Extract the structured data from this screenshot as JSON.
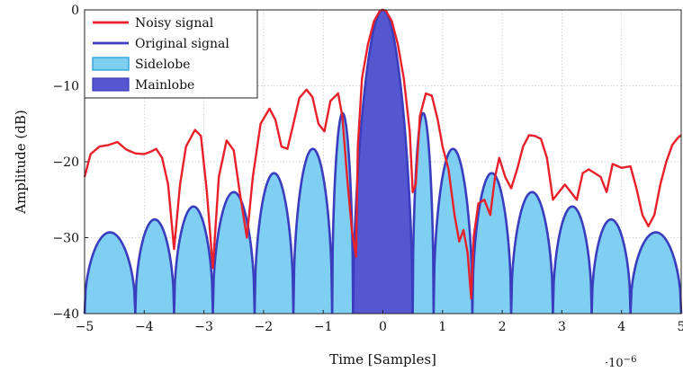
{
  "chart_data": {
    "type": "area",
    "xlabel": "Time [Samples]",
    "ylabel": "Amplitude (dB)",
    "x_scale_label": "·10",
    "x_scale_exponent": "−6",
    "xlim": [
      -5,
      5
    ],
    "ylim": [
      -40,
      0
    ],
    "grid": true,
    "legend_position": "top-left",
    "xticks": [
      -5,
      -4,
      -3,
      -2,
      -1,
      0,
      1,
      2,
      3,
      4,
      5
    ],
    "xtick_labels": [
      "−5",
      "−4",
      "−3",
      "−2",
      "−1",
      "0",
      "1",
      "2",
      "3",
      "4",
      "5"
    ],
    "yticks": [
      -40,
      -30,
      -20,
      -10,
      0
    ],
    "ytick_labels": [
      "−40",
      "−30",
      "−20",
      "−10",
      "0"
    ],
    "colors": {
      "noisy": "#e8202a",
      "original": "#3a3dbd",
      "sidelobe_fill": "#7ecff2",
      "sidelobe_edge": "#1a9ad6",
      "mainlobe_fill": "#5457d0",
      "grid": "#c8c8c8"
    },
    "legend": [
      {
        "label": "Noisy signal",
        "kind": "line",
        "color": "#e8202a"
      },
      {
        "label": "Original signal",
        "kind": "line",
        "color": "#3a3dbd"
      },
      {
        "label": "Sidelobe",
        "kind": "patch",
        "color": "#7ecff2"
      },
      {
        "label": "Mainlobe",
        "kind": "patch",
        "color": "#5457d0"
      }
    ],
    "series": [
      {
        "name": "Original signal",
        "role": "lobes",
        "mainlobe": {
          "x_start": -0.5,
          "x_end": 0.5,
          "peak": 0,
          "base": -40
        },
        "sidelobes": [
          {
            "x_start": -5.0,
            "x_end": -4.15,
            "peak": -29.3
          },
          {
            "x_start": -4.15,
            "x_end": -3.5,
            "peak": -27.6
          },
          {
            "x_start": -3.5,
            "x_end": -2.85,
            "peak": -25.9
          },
          {
            "x_start": -2.85,
            "x_end": -2.15,
            "peak": -24.0
          },
          {
            "x_start": -2.15,
            "x_end": -1.5,
            "peak": -21.5
          },
          {
            "x_start": -1.5,
            "x_end": -0.85,
            "peak": -18.3
          },
          {
            "x_start": -0.85,
            "x_end": -0.5,
            "peak": -13.6
          },
          {
            "x_start": 0.5,
            "x_end": 0.85,
            "peak": -13.6
          },
          {
            "x_start": 0.85,
            "x_end": 1.5,
            "peak": -18.3
          },
          {
            "x_start": 1.5,
            "x_end": 2.15,
            "peak": -21.5
          },
          {
            "x_start": 2.15,
            "x_end": 2.85,
            "peak": -24.0
          },
          {
            "x_start": 2.85,
            "x_end": 3.5,
            "peak": -25.9
          },
          {
            "x_start": 3.5,
            "x_end": 4.15,
            "peak": -27.6
          },
          {
            "x_start": 4.15,
            "x_end": 5.0,
            "peak": -29.3
          }
        ]
      },
      {
        "name": "Noisy signal",
        "role": "line",
        "points": [
          [
            -5.0,
            -22.0
          ],
          [
            -4.9,
            -19.0
          ],
          [
            -4.75,
            -18.0
          ],
          [
            -4.6,
            -17.8
          ],
          [
            -4.45,
            -17.4
          ],
          [
            -4.3,
            -18.4
          ],
          [
            -4.15,
            -18.9
          ],
          [
            -4.0,
            -19.0
          ],
          [
            -3.9,
            -18.7
          ],
          [
            -3.8,
            -18.3
          ],
          [
            -3.7,
            -19.5
          ],
          [
            -3.6,
            -23.0
          ],
          [
            -3.5,
            -31.5
          ],
          [
            -3.4,
            -23.0
          ],
          [
            -3.3,
            -18.0
          ],
          [
            -3.15,
            -15.8
          ],
          [
            -3.05,
            -16.6
          ],
          [
            -2.95,
            -24.0
          ],
          [
            -2.85,
            -34.0
          ],
          [
            -2.75,
            -22.0
          ],
          [
            -2.62,
            -17.2
          ],
          [
            -2.5,
            -18.5
          ],
          [
            -2.4,
            -24.0
          ],
          [
            -2.28,
            -30.0
          ],
          [
            -2.18,
            -22.0
          ],
          [
            -2.05,
            -15.0
          ],
          [
            -1.9,
            -13.0
          ],
          [
            -1.8,
            -14.5
          ],
          [
            -1.7,
            -18.0
          ],
          [
            -1.6,
            -18.3
          ],
          [
            -1.5,
            -15.0
          ],
          [
            -1.4,
            -11.6
          ],
          [
            -1.28,
            -10.5
          ],
          [
            -1.18,
            -11.5
          ],
          [
            -1.08,
            -15.0
          ],
          [
            -0.98,
            -16.0
          ],
          [
            -0.88,
            -12.0
          ],
          [
            -0.75,
            -11.0
          ],
          [
            -0.68,
            -14.0
          ],
          [
            -0.6,
            -22.0
          ],
          [
            -0.52,
            -29.0
          ],
          [
            -0.45,
            -32.5
          ],
          [
            -0.42,
            -18.0
          ],
          [
            -0.35,
            -9.0
          ],
          [
            -0.25,
            -4.5
          ],
          [
            -0.15,
            -1.5
          ],
          [
            -0.05,
            -0.1
          ],
          [
            0.0,
            0.0
          ],
          [
            0.05,
            -0.1
          ],
          [
            0.15,
            -1.5
          ],
          [
            0.25,
            -4.5
          ],
          [
            0.35,
            -9.0
          ],
          [
            0.45,
            -16.0
          ],
          [
            0.5,
            -24.0
          ],
          [
            0.55,
            -23.0
          ],
          [
            0.62,
            -14.0
          ],
          [
            0.72,
            -11.0
          ],
          [
            0.82,
            -11.3
          ],
          [
            0.92,
            -14.5
          ],
          [
            1.0,
            -18.0
          ],
          [
            1.1,
            -21.0
          ],
          [
            1.2,
            -27.0
          ],
          [
            1.28,
            -30.5
          ],
          [
            1.35,
            -29.0
          ],
          [
            1.42,
            -32.0
          ],
          [
            1.48,
            -38.0
          ],
          [
            1.52,
            -30.0
          ],
          [
            1.6,
            -25.5
          ],
          [
            1.7,
            -25.0
          ],
          [
            1.8,
            -27.0
          ],
          [
            1.88,
            -22.0
          ],
          [
            1.95,
            -19.5
          ],
          [
            2.05,
            -22.0
          ],
          [
            2.15,
            -23.5
          ],
          [
            2.25,
            -21.0
          ],
          [
            2.35,
            -18.0
          ],
          [
            2.45,
            -16.5
          ],
          [
            2.55,
            -16.6
          ],
          [
            2.65,
            -17.0
          ],
          [
            2.75,
            -19.5
          ],
          [
            2.85,
            -25.0
          ],
          [
            2.95,
            -24.0
          ],
          [
            3.05,
            -23.0
          ],
          [
            3.15,
            -24.0
          ],
          [
            3.25,
            -25.0
          ],
          [
            3.35,
            -21.5
          ],
          [
            3.45,
            -21.0
          ],
          [
            3.55,
            -21.5
          ],
          [
            3.65,
            -22.0
          ],
          [
            3.75,
            -24.0
          ],
          [
            3.85,
            -20.3
          ],
          [
            4.0,
            -20.8
          ],
          [
            4.15,
            -20.6
          ],
          [
            4.25,
            -23.5
          ],
          [
            4.35,
            -27.0
          ],
          [
            4.45,
            -28.5
          ],
          [
            4.55,
            -27.0
          ],
          [
            4.65,
            -23.0
          ],
          [
            4.75,
            -20.0
          ],
          [
            4.85,
            -17.8
          ],
          [
            4.95,
            -16.8
          ],
          [
            5.0,
            -16.5
          ]
        ]
      }
    ]
  }
}
